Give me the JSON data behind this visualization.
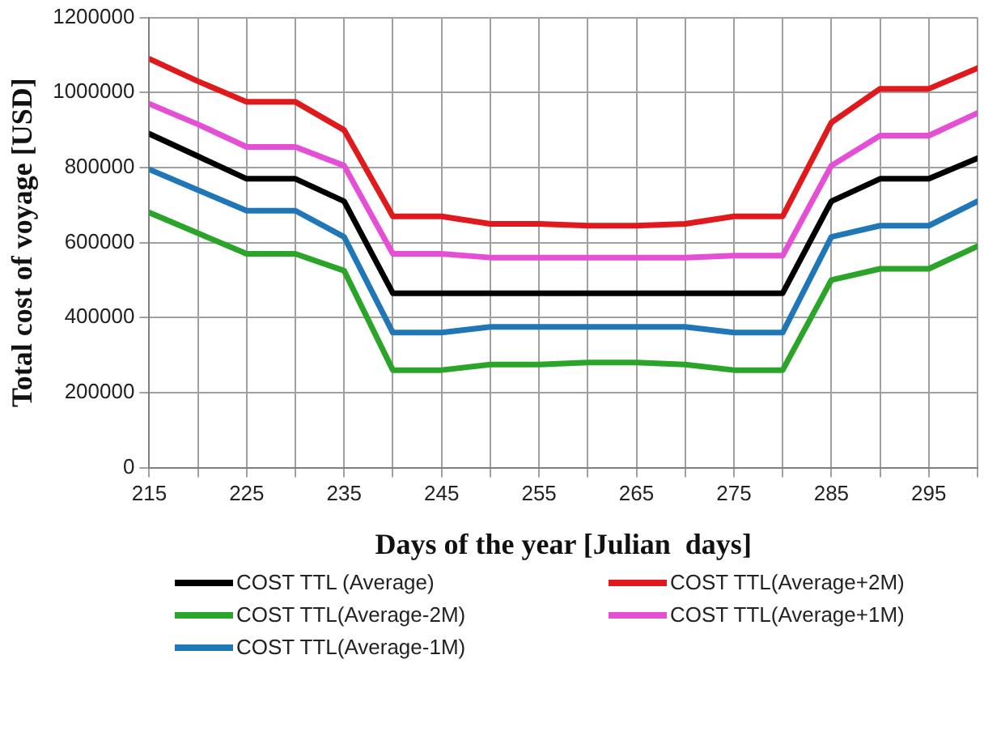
{
  "chart_data": {
    "type": "line",
    "xlabel": "Days of the year [Julian  days]",
    "ylabel": "Total cost of voyage [USD]",
    "x": [
      215,
      220,
      225,
      230,
      235,
      240,
      245,
      250,
      255,
      260,
      265,
      270,
      275,
      280,
      285,
      290,
      295,
      300
    ],
    "series": [
      {
        "name": "COST TTL (Average)",
        "color": "#000000",
        "values": [
          890000,
          830000,
          770000,
          770000,
          710000,
          465000,
          465000,
          465000,
          465000,
          465000,
          465000,
          465000,
          465000,
          465000,
          710000,
          770000,
          770000,
          825000
        ]
      },
      {
        "name": "COST TTL(Average+2M)",
        "color": "#e0191d",
        "values": [
          1090000,
          1030000,
          975000,
          975000,
          900000,
          670000,
          670000,
          650000,
          650000,
          645000,
          645000,
          650000,
          670000,
          670000,
          920000,
          1010000,
          1010000,
          1065000
        ]
      },
      {
        "name": "COST TTL(Average-2M)",
        "color": "#2aa52a",
        "values": [
          680000,
          625000,
          570000,
          570000,
          525000,
          260000,
          260000,
          275000,
          275000,
          280000,
          280000,
          275000,
          260000,
          260000,
          500000,
          530000,
          530000,
          590000
        ]
      },
      {
        "name": "COST TTL(Average+1M)",
        "color": "#e44fd6",
        "values": [
          970000,
          915000,
          855000,
          855000,
          805000,
          570000,
          570000,
          560000,
          560000,
          560000,
          560000,
          560000,
          565000,
          565000,
          805000,
          885000,
          885000,
          945000
        ]
      },
      {
        "name": "COST TTL(Average-1M)",
        "color": "#1f77b8",
        "values": [
          795000,
          740000,
          685000,
          685000,
          615000,
          360000,
          360000,
          375000,
          375000,
          375000,
          375000,
          375000,
          360000,
          360000,
          615000,
          645000,
          645000,
          710000
        ]
      }
    ],
    "xlim": [
      215,
      300
    ],
    "xticks": [
      215,
      {
        "value": 220,
        "label": null
      },
      225,
      {
        "value": 230,
        "label": null
      },
      235,
      {
        "value": 240,
        "label": null
      },
      245,
      {
        "value": 250,
        "label": null
      },
      255,
      {
        "value": 260,
        "label": null
      },
      265,
      {
        "value": 270,
        "label": null
      },
      275,
      {
        "value": 280,
        "label": null
      },
      285,
      {
        "value": 290,
        "label": null
      },
      295,
      {
        "value": 300,
        "label": null
      }
    ],
    "ylim": [
      0,
      1200000
    ],
    "yticks": [
      0,
      200000,
      400000,
      600000,
      800000,
      1000000,
      1200000
    ],
    "grid": true,
    "legend": "bottom",
    "marker": "none",
    "line_style": "solid"
  }
}
